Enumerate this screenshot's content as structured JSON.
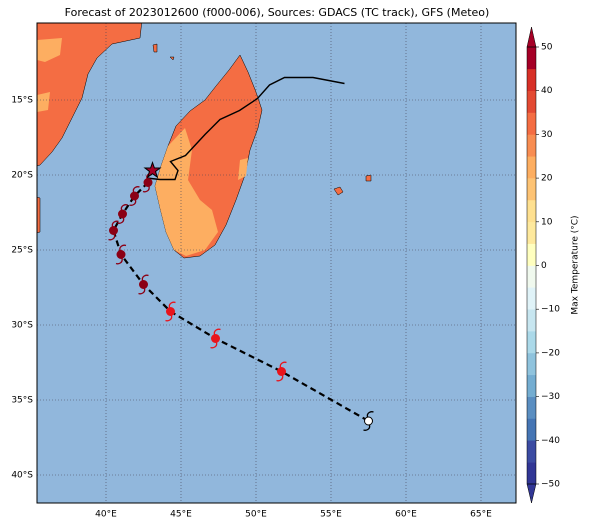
{
  "map": {
    "title": "Forecast of 2023012600 (f000-006), Sources: GDACS (TC track), GFS (Meteo)",
    "lon_ticks": [
      {
        "value": 40,
        "label": "40°E"
      },
      {
        "value": 45,
        "label": "45°E"
      },
      {
        "value": 50,
        "label": "50°E"
      },
      {
        "value": 55,
        "label": "55°E"
      },
      {
        "value": 60,
        "label": "60°E"
      },
      {
        "value": 65,
        "label": "65°E"
      }
    ],
    "lat_ticks": [
      {
        "value": -15,
        "label": "15°S"
      },
      {
        "value": -20,
        "label": "20°S"
      },
      {
        "value": -25,
        "label": "25°S"
      },
      {
        "value": -30,
        "label": "30°S"
      },
      {
        "value": -35,
        "label": "35°S"
      },
      {
        "value": -40,
        "label": "40°S"
      }
    ],
    "ocean_color": "#91b7dc",
    "observed_track": {
      "color": "#000000",
      "lon": [
        55.9,
        53.8,
        51.9,
        50.9,
        50.1,
        48.9,
        47.6,
        46.6,
        45.3,
        44.3,
        44.8,
        44.6,
        43.6,
        42.7
      ],
      "lat": [
        -13.9,
        -13.5,
        -13.5,
        -14.0,
        -14.9,
        -15.7,
        -16.3,
        -17.3,
        -18.7,
        -19.1,
        -19.7,
        -20.3,
        -20.3,
        -20.2
      ]
    },
    "current_position": {
      "lon": 43.1,
      "lat": -19.7,
      "color": "#a50026"
    },
    "forecast_track": {
      "lon": [
        42.8,
        41.9,
        41.1,
        40.5,
        41.0,
        42.5,
        44.3,
        47.3,
        51.7,
        57.5
      ],
      "lat": [
        -20.5,
        -21.4,
        -22.6,
        -23.7,
        -25.3,
        -27.3,
        -29.1,
        -30.9,
        -33.1,
        -36.4
      ],
      "colors": [
        "#8b0015",
        "#8b0015",
        "#8b0015",
        "#8b0015",
        "#8b0015",
        "#8b0015",
        "#e8141c",
        "#e8141c",
        "#e8141c",
        "#ffffff"
      ]
    },
    "colorbar": {
      "label": "Max Temperature (°C)",
      "ticks": [
        {
          "value": -50,
          "label": "−50"
        },
        {
          "value": -40,
          "label": "−40"
        },
        {
          "value": -30,
          "label": "−30"
        },
        {
          "value": -20,
          "label": "−20"
        },
        {
          "value": -10,
          "label": "−10"
        },
        0,
        10,
        20,
        30,
        40,
        50
      ],
      "colors": [
        "#313695",
        "#3b4ba2",
        "#4575b4",
        "#5a8ec1",
        "#74add1",
        "#8fc3dd",
        "#abd9e9",
        "#c7e6f0",
        "#e0f3f8",
        "#f0f9ee",
        "#ffffbf",
        "#fee99d",
        "#fee090",
        "#fdc374",
        "#fdae61",
        "#f88d52",
        "#f46d43",
        "#e34a33",
        "#d73027",
        "#a50026"
      ]
    }
  }
}
